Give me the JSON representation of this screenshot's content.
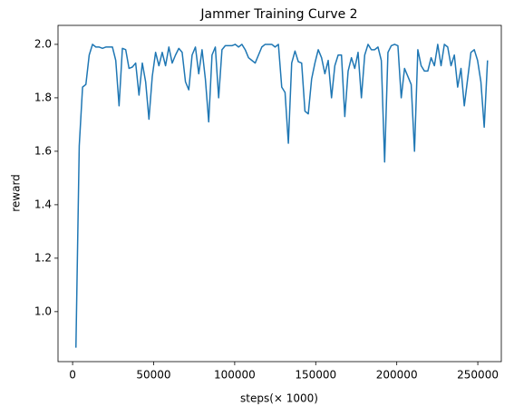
{
  "chart_data": {
    "type": "line",
    "title": "Jammer Training Curve 2",
    "xlabel": "steps(× 1000)",
    "ylabel": "reward",
    "x": [
      2048,
      4096,
      6144,
      8192,
      10240,
      12288,
      14336,
      16384,
      18432,
      20480,
      22528,
      24576,
      26624,
      28672,
      30720,
      32768,
      34816,
      36864,
      38912,
      40960,
      43008,
      45056,
      47104,
      49152,
      51200,
      53248,
      55296,
      57344,
      59392,
      61440,
      63488,
      65536,
      67584,
      69632,
      71680,
      73728,
      75776,
      77824,
      79872,
      81920,
      83968,
      86016,
      88064,
      90112,
      92160,
      94208,
      96256,
      98304,
      100352,
      102400,
      104448,
      106496,
      108544,
      110592,
      112640,
      114688,
      116736,
      118784,
      120832,
      122880,
      124928,
      126976,
      129024,
      131072,
      133120,
      135168,
      137216,
      139264,
      141312,
      143360,
      145408,
      147456,
      149504,
      151552,
      153600,
      155648,
      157696,
      159744,
      161792,
      163840,
      165888,
      167936,
      169984,
      172032,
      174080,
      176128,
      178176,
      180224,
      182272,
      184320,
      186368,
      188416,
      190464,
      192512,
      194560,
      196608,
      198656,
      200704,
      202752,
      204800,
      206848,
      208896,
      210944,
      212992,
      215040,
      217088,
      219136,
      221184,
      223232,
      225280,
      227328,
      229376,
      231424,
      233472,
      235520,
      237568,
      239616,
      241664,
      243712,
      245760,
      247808,
      249856,
      251904,
      253952,
      256000
    ],
    "series": [
      {
        "name": "reward",
        "color": "#1f77b4",
        "values": [
          0.865,
          1.62,
          1.84,
          1.85,
          1.96,
          2.0,
          1.99,
          1.99,
          1.985,
          1.99,
          1.99,
          1.99,
          1.94,
          1.77,
          1.985,
          1.98,
          1.91,
          1.915,
          1.93,
          1.81,
          1.93,
          1.86,
          1.72,
          1.88,
          1.97,
          1.92,
          1.97,
          1.92,
          1.99,
          1.93,
          1.96,
          1.985,
          1.97,
          1.86,
          1.83,
          1.96,
          1.99,
          1.89,
          1.98,
          1.87,
          1.71,
          1.96,
          1.99,
          1.8,
          1.98,
          1.995,
          1.995,
          1.995,
          2.0,
          1.99,
          2.0,
          1.98,
          1.95,
          1.94,
          1.93,
          1.96,
          1.99,
          2.0,
          2.0,
          2.0,
          1.99,
          2.0,
          1.84,
          1.82,
          1.63,
          1.93,
          1.975,
          1.935,
          1.93,
          1.75,
          1.74,
          1.87,
          1.93,
          1.98,
          1.95,
          1.89,
          1.94,
          1.8,
          1.92,
          1.96,
          1.96,
          1.73,
          1.9,
          1.95,
          1.91,
          1.97,
          1.8,
          1.96,
          2.0,
          1.98,
          1.98,
          1.99,
          1.94,
          1.56,
          1.97,
          1.995,
          2.0,
          1.995,
          1.8,
          1.91,
          1.88,
          1.85,
          1.6,
          1.98,
          1.92,
          1.9,
          1.9,
          1.95,
          1.92,
          2.0,
          1.92,
          2.0,
          1.99,
          1.92,
          1.96,
          1.84,
          1.91,
          1.77,
          1.87,
          1.97,
          1.98,
          1.94,
          1.86,
          1.69,
          1.94
        ]
      }
    ],
    "xlim": [
      -9000,
      264500
    ],
    "ylim": [
      0.813,
      2.071
    ],
    "xticks": [
      0,
      50000,
      100000,
      150000,
      200000,
      250000
    ],
    "yticks": [
      {
        "value": 1,
        "label": "1.0"
      },
      1.2,
      1.4,
      1.6,
      1.8,
      {
        "value": 2,
        "label": "2.0"
      }
    ]
  }
}
